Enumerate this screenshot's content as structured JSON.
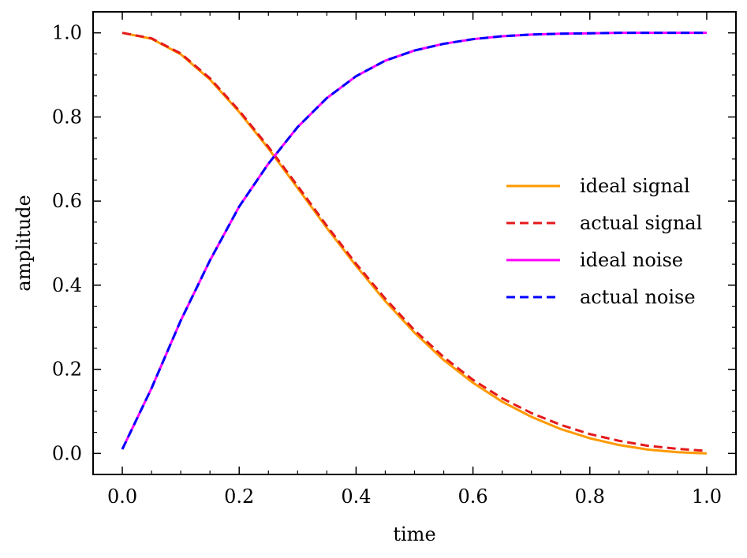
{
  "chart_data": {
    "type": "line",
    "title": "",
    "xlabel": "time",
    "ylabel": "amplitude",
    "xlim": [
      -0.05,
      1.05
    ],
    "ylim": [
      -0.05,
      1.05
    ],
    "xticks": [
      0.0,
      0.2,
      0.4,
      0.6,
      0.8,
      1.0
    ],
    "yticks": [
      0.0,
      0.2,
      0.4,
      0.6,
      0.8,
      1.0
    ],
    "xtick_labels": [
      "0.0",
      "0.2",
      "0.4",
      "0.6",
      "0.8",
      "1.0"
    ],
    "ytick_labels": [
      "0.0",
      "0.2",
      "0.4",
      "0.6",
      "0.8",
      "1.0"
    ],
    "grid": false,
    "legend_position": "center-right",
    "x": [
      0.0,
      0.05,
      0.1,
      0.15,
      0.2,
      0.25,
      0.3,
      0.35,
      0.4,
      0.45,
      0.5,
      0.55,
      0.6,
      0.65,
      0.7,
      0.75,
      0.8,
      0.85,
      0.9,
      0.95,
      1.0
    ],
    "series": [
      {
        "name": "ideal signal",
        "color": "#ff9900",
        "dash": "solid",
        "values": [
          1.0,
          0.986,
          0.949,
          0.889,
          0.812,
          0.725,
          0.631,
          0.536,
          0.446,
          0.362,
          0.287,
          0.222,
          0.168,
          0.123,
          0.087,
          0.058,
          0.036,
          0.02,
          0.009,
          0.003,
          0.0
        ]
      },
      {
        "name": "actual signal",
        "color": "#e41a1c",
        "dash": "dashed",
        "values": [
          1.0,
          0.987,
          0.951,
          0.892,
          0.815,
          0.729,
          0.636,
          0.541,
          0.451,
          0.368,
          0.293,
          0.229,
          0.175,
          0.131,
          0.096,
          0.068,
          0.046,
          0.03,
          0.018,
          0.011,
          0.006
        ]
      },
      {
        "name": "ideal noise",
        "color": "#ff00ff",
        "dash": "solid",
        "values": [
          0.01,
          0.155,
          0.316,
          0.459,
          0.587,
          0.689,
          0.776,
          0.845,
          0.897,
          0.934,
          0.958,
          0.974,
          0.985,
          0.992,
          0.996,
          0.998,
          0.999,
          1.0,
          1.0,
          1.0,
          1.0
        ]
      },
      {
        "name": "actual noise",
        "color": "#0000ff",
        "dash": "dashed",
        "values": [
          0.01,
          0.155,
          0.316,
          0.459,
          0.587,
          0.689,
          0.776,
          0.845,
          0.897,
          0.934,
          0.958,
          0.974,
          0.985,
          0.992,
          0.996,
          0.998,
          0.999,
          1.0,
          1.0,
          1.0,
          1.0
        ]
      }
    ]
  }
}
